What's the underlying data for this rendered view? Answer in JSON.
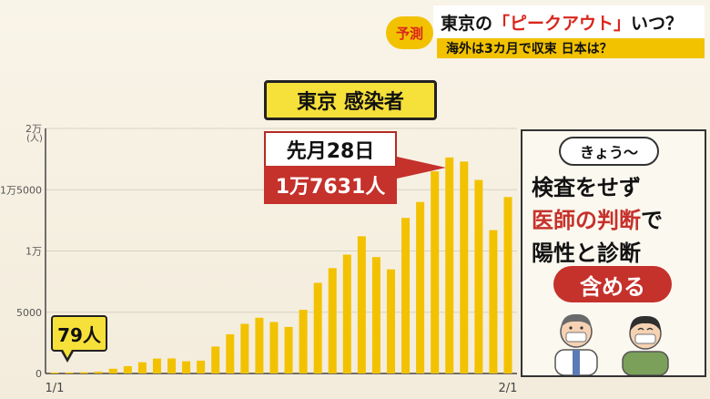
{
  "banner": {
    "tag": "予測",
    "headline_pre": "東京の",
    "headline_quote": "「ピークアウト」",
    "headline_post": "いつ？",
    "subline": "海外は3カ月で収束 日本は？"
  },
  "chart_title": "東京 感染者",
  "peak_callout": {
    "date": "先月28日",
    "value": "1万7631人"
  },
  "start_label": "79人",
  "side_panel": {
    "pill": "きょう〜",
    "line1": "検査をせず",
    "line2_red": "医師の判断",
    "line2_black": "で",
    "line3": "陽性と診断",
    "badge": "含める"
  },
  "colors": {
    "bar": "#f2c200",
    "accent_red": "#c5312b",
    "title_bg": "#f6e03a"
  },
  "chart_data": {
    "type": "bar",
    "title": "東京 感染者",
    "ylabel": "(人)",
    "ylim": [
      0,
      20000
    ],
    "y_ticks": [
      {
        "value": 0,
        "label": "0"
      },
      {
        "value": 5000,
        "label": "5000"
      },
      {
        "value": 10000,
        "label": "1万"
      },
      {
        "value": 15000,
        "label": "1万5000"
      },
      {
        "value": 20000,
        "label": "2万"
      }
    ],
    "x_labels": [
      {
        "index": 0,
        "label": "1/1"
      },
      {
        "index": 31,
        "label": "2/1"
      }
    ],
    "values": [
      79,
      84,
      100,
      150,
      390,
      600,
      920,
      1220,
      1230,
      1000,
      1050,
      2200,
      3200,
      4050,
      4550,
      4200,
      3800,
      5200,
      7400,
      8600,
      9700,
      11200,
      9500,
      8500,
      12700,
      14000,
      16500,
      17631,
      17300,
      15800,
      11700,
      14400
    ],
    "grid": true
  }
}
